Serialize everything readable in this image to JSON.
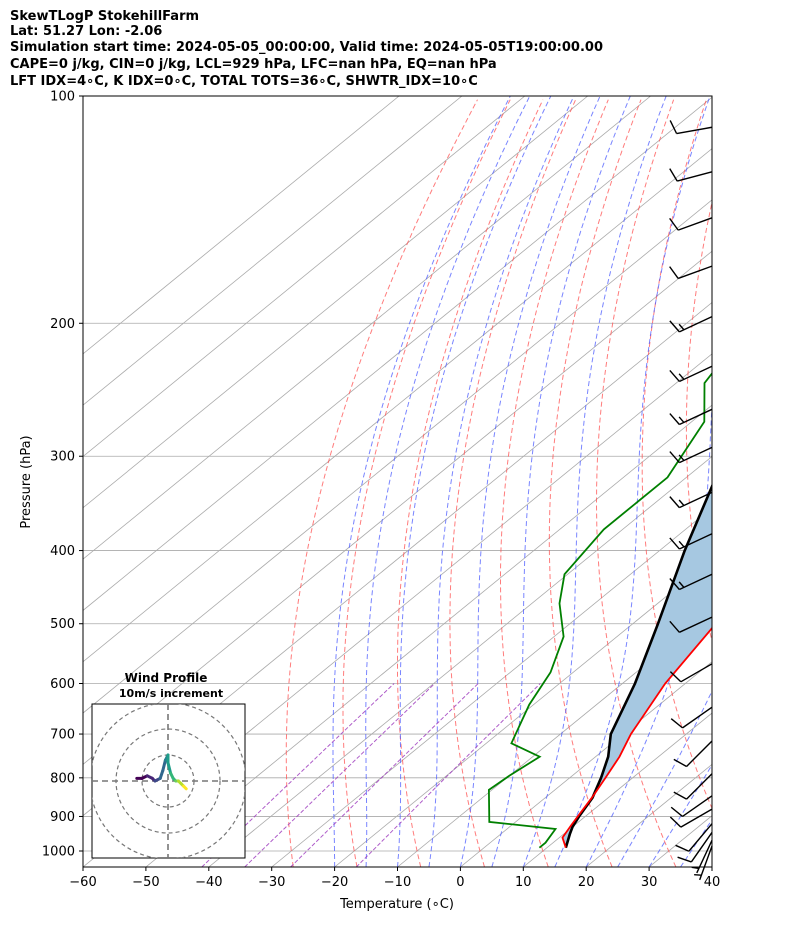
{
  "header": {
    "line1": "SkewTLogP StokehillFarm",
    "line2": "Lat: 51.27   Lon: -2.06",
    "line3": "Simulation start time: 2024-05-05_00:00:00, Valid time: 2024-05-05T19:00:00.00",
    "line4": "CAPE=0 j/kg, CIN=0 j/kg, LCL=929 hPa, LFC=nan hPa, EQ=nan hPa",
    "line5": "LFT IDX=4∘C, K IDX=0∘C, TOTAL TOTS=36∘C, SHWTR_IDX=10∘C"
  },
  "chart_data": {
    "type": "line",
    "xlabel": "Temperature (∘C)",
    "ylabel": "Pressure (hPa)",
    "xlim": [
      -60,
      40
    ],
    "ylim": [
      1050,
      100
    ],
    "y_scale": "log",
    "x_ticks": [
      "−60",
      "−50",
      "−40",
      "−30",
      "−20",
      "−10",
      "0",
      "10",
      "20",
      "30",
      "40"
    ],
    "x_tick_values": [
      -60,
      -50,
      -40,
      -30,
      -20,
      -10,
      0,
      10,
      20,
      30,
      40
    ],
    "y_ticks": [
      1000,
      900,
      800,
      700,
      600,
      500,
      400,
      300,
      200,
      100
    ],
    "grid": true,
    "colors": {
      "temperature": "#ff0000",
      "dewpoint": "#008000",
      "parcel": "#000000",
      "cape_fill": "#a6c8e1",
      "dry_adiabat": "#ff5050",
      "moist_adiabat": "#4c5cff",
      "mixing_ratio": "#a040c0",
      "isotherm": "#aaaaaa"
    },
    "series": [
      {
        "name": "",
        "role": "temperature",
        "x_unskewed": [
          13.0,
          10.5,
          9.5,
          8.8,
          7.4,
          5.7,
          3.8,
          1.2,
          -3.2,
          -6.8,
          -12.1,
          -17.8,
          -21.1,
          -27.6,
          -29.1,
          -32.8,
          -40.3,
          -46.5,
          -54.2,
          -58.8,
          -65.0
        ],
        "p": [
          990,
          960,
          925,
          900,
          850,
          800,
          750,
          700,
          600,
          500,
          430,
          375,
          340,
          300,
          285,
          250,
          200,
          170,
          150,
          130,
          100
        ]
      },
      {
        "name": "",
        "role": "dewpoint",
        "x_unskewed": [
          8.8,
          8.8,
          7.7,
          -4.2,
          -10.5,
          -10.0,
          -8.9,
          -16.0,
          -20.7,
          -23.6,
          -28.5,
          -35.6,
          -40.5,
          -43.0,
          -43.0,
          -48.0,
          -55.5,
          -59.2,
          -64.8,
          -69.3,
          -80.0
        ],
        "p": [
          990,
          975,
          935,
          915,
          830,
          795,
          750,
          720,
          640,
          580,
          520,
          470,
          430,
          375,
          320,
          270,
          240,
          205,
          175,
          155,
          100
        ]
      },
      {
        "name": "",
        "role": "parcel",
        "x_unskewed": [
          13.0,
          11.0,
          10.0,
          9.0,
          7.5,
          5.0,
          2.0,
          -2.0,
          -8.0,
          -16.0,
          -26.0,
          -38.0,
          -52.0,
          -66.0,
          -76.0,
          -85.0
        ],
        "p": [
          990,
          950,
          929,
          900,
          850,
          800,
          750,
          700,
          600,
          500,
          400,
          300,
          200,
          150,
          120,
          100
        ]
      }
    ],
    "wind_barbs": {
      "p": [
        985,
        968,
        945,
        920,
        880,
        845,
        790,
        715,
        645,
        565,
        490,
        430,
        380,
        335,
        292,
        260,
        228,
        196,
        168,
        145,
        126,
        110
      ],
      "speed_kt": [
        5,
        5,
        10,
        10,
        10,
        10,
        10,
        10,
        10,
        10,
        10,
        15,
        15,
        15,
        15,
        15,
        15,
        15,
        10,
        10,
        10,
        10
      ],
      "direction_deg": [
        200,
        205,
        215,
        220,
        240,
        235,
        225,
        225,
        235,
        240,
        245,
        245,
        245,
        245,
        245,
        245,
        245,
        245,
        250,
        250,
        255,
        260
      ]
    },
    "hodograph": {
      "title": "Wind Profile",
      "subtitle": "10m/s increment",
      "ring_radii_ms": [
        10,
        20,
        30
      ],
      "u_ms": [
        -12,
        -10,
        -8,
        -6,
        -5,
        -3,
        -2,
        -1,
        0,
        0,
        1,
        2,
        3,
        4,
        5,
        6,
        7
      ],
      "v_ms": [
        1,
        1,
        2,
        1,
        0,
        1,
        4,
        8,
        10,
        7,
        3,
        1,
        0,
        0,
        -1,
        -2,
        -3
      ]
    }
  }
}
